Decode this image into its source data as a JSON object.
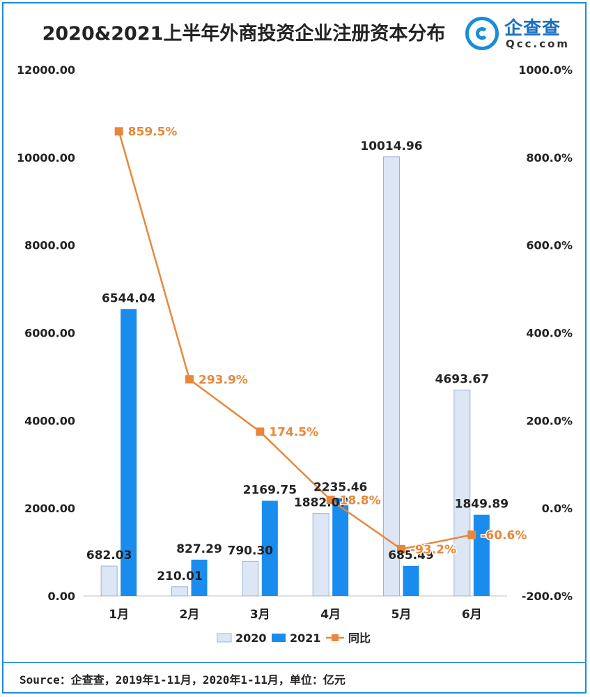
{
  "header": {
    "title": "2020&2021上半年外商投资企业注册资本分布",
    "logo_cn": "企查查",
    "logo_en": "Qcc.com"
  },
  "footer": {
    "source": "Source：企查查，2019年1-11月，2020年1-11月，单位：亿元"
  },
  "colors": {
    "series_2020": "#dce6f5",
    "series_2020_stroke": "#9db3d6",
    "series_2021": "#1a8cee",
    "line": "#e8873a",
    "frame": "#1a8cd8"
  },
  "chart_data": {
    "type": "bar",
    "categories": [
      "1月",
      "2月",
      "3月",
      "4月",
      "5月",
      "6月"
    ],
    "series": [
      {
        "name": "2020",
        "type": "bar",
        "axis": "left",
        "values": [
          682.03,
          210.01,
          790.3,
          1882.07,
          10014.96,
          4693.67
        ],
        "labels": [
          "682.03",
          "210.01",
          "790.30",
          "1882.07",
          "10014.96",
          "4693.67"
        ]
      },
      {
        "name": "2021",
        "type": "bar",
        "axis": "left",
        "values": [
          6544.04,
          827.29,
          2169.75,
          2235.46,
          685.49,
          1849.89
        ],
        "labels": [
          "6544.04",
          "827.29",
          "2169.75",
          "2235.46",
          "685.49",
          "1849.89"
        ]
      },
      {
        "name": "同比",
        "type": "line",
        "axis": "right",
        "values": [
          859.5,
          293.9,
          174.5,
          18.8,
          -93.2,
          -60.6
        ],
        "labels": [
          "859.5%",
          "293.9%",
          "174.5%",
          "18.8%",
          "-93.2%",
          "-60.6%"
        ]
      }
    ],
    "left_axis": {
      "ylim": [
        0,
        12000
      ],
      "ticks": [
        "0.00",
        "2000.00",
        "4000.00",
        "6000.00",
        "8000.00",
        "10000.00",
        "12000.00"
      ]
    },
    "right_axis": {
      "ylim": [
        -200,
        1000
      ],
      "ticks": [
        "-200.0%",
        "0.0%",
        "200.0%",
        "400.0%",
        "600.0%",
        "800.0%",
        "1000.0%"
      ]
    },
    "legend": {
      "position": "bottom",
      "items": [
        "2020",
        "2021",
        "同比"
      ]
    },
    "grid": false
  }
}
